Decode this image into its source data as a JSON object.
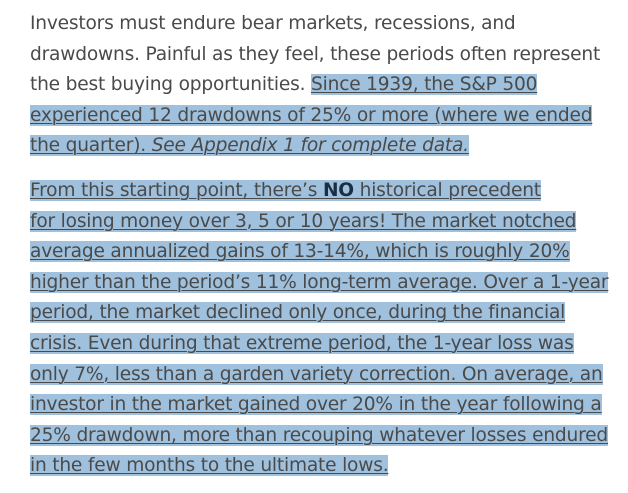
{
  "paragraph1": {
    "line1": "Investors must endure bear markets, recessions, and",
    "line2": "drawdowns. Painful as they feel, these periods often represent",
    "line3_plain": "the best buying opportunities. ",
    "line3_hl": "Since 1939, the S&P 500",
    "line4": "experienced 12 drawdowns of 25% or more (where we ended",
    "line5_hl": "the quarter). ",
    "line5_em": "See Appendix 1 for complete data."
  },
  "paragraph2": {
    "line1_a": "From this starting point, there’s ",
    "line1_strong": "NO",
    "line1_b": " historical precedent",
    "line2": "for losing money over 3, 5 or 10 years! The market notched",
    "line3": "average annualized gains of 13-14%, which is roughly 20%",
    "line4": "higher than the period’s 11% long-term average. Over a 1-year",
    "line5": "period, the market declined only once, during the financial",
    "line6": "crisis. Even during that extreme period, the 1-year loss was",
    "line7": "only 7%, less than a garden variety correction. On average, an",
    "line8": "investor in the market gained over 20% in the year following a",
    "line9": "25% drawdown, more than recouping whatever losses endured",
    "line10": "in the few months to the ultimate lows."
  }
}
